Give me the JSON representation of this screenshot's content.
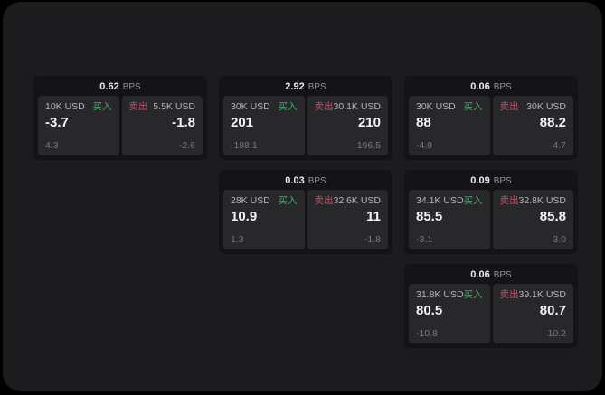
{
  "colors": {
    "background": "#000000",
    "surface": "#1c1c1e",
    "card": "#141416",
    "panel": "#28282b",
    "buy": "#44aa66",
    "sell": "#c85268"
  },
  "labels": {
    "bps_unit": "BPS",
    "buy": "买入",
    "sell": "卖出"
  },
  "cards": [
    {
      "col": 1,
      "row": 1,
      "bps": "0.62",
      "buy": {
        "size": "10K USD",
        "price": "-3.7",
        "change": "4.3"
      },
      "sell": {
        "size": "5.5K USD",
        "price": "-1.8",
        "change": "-2.6"
      }
    },
    {
      "col": 2,
      "row": 1,
      "bps": "2.92",
      "buy": {
        "size": "30K USD",
        "price": "201",
        "change": "-188.1"
      },
      "sell": {
        "size": "30.1K USD",
        "price": "210",
        "change": "196.5"
      }
    },
    {
      "col": 3,
      "row": 1,
      "bps": "0.06",
      "buy": {
        "size": "30K USD",
        "price": "88",
        "change": "-4.9"
      },
      "sell": {
        "size": "30K USD",
        "price": "88.2",
        "change": "4.7"
      }
    },
    {
      "col": 2,
      "row": 2,
      "bps": "0.03",
      "buy": {
        "size": "28K USD",
        "price": "10.9",
        "change": "1.3"
      },
      "sell": {
        "size": "32.6K USD",
        "price": "11",
        "change": "-1.8"
      }
    },
    {
      "col": 3,
      "row": 2,
      "bps": "0.09",
      "buy": {
        "size": "34.1K USD",
        "price": "85.5",
        "change": "-3.1"
      },
      "sell": {
        "size": "32.8K USD",
        "price": "85.8",
        "change": "3.0"
      }
    },
    {
      "col": 3,
      "row": 3,
      "bps": "0.06",
      "buy": {
        "size": "31.8K USD",
        "price": "80.5",
        "change": "-10.8"
      },
      "sell": {
        "size": "39.1K USD",
        "price": "80.7",
        "change": "10.2"
      }
    }
  ]
}
